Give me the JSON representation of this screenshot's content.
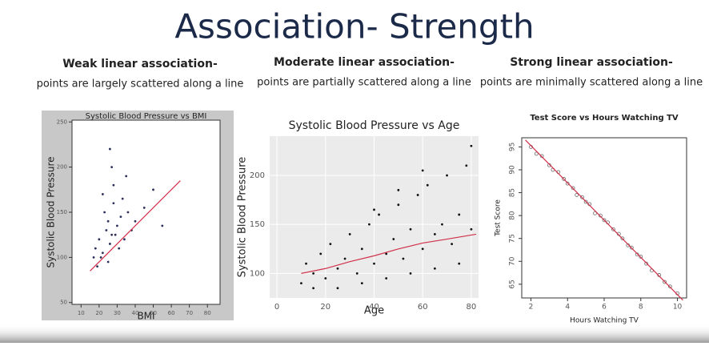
{
  "slide": {
    "title": "Association- Strength",
    "columns": [
      {
        "heading": "Weak linear association-",
        "subheading": "points are largely scattered along a line"
      },
      {
        "heading": "Moderate linear association-",
        "subheading": "points are partially scattered along a line"
      },
      {
        "heading": "Strong linear association-",
        "subheading": "points are minimally scattered along a line"
      }
    ]
  },
  "chart_data": [
    {
      "type": "scatter",
      "title": "Systolic Blood Pressure vs BMI",
      "x_label": "BMI",
      "y_label": "Systolic Blood Pressure",
      "x": [
        18,
        20,
        22,
        24,
        25,
        26,
        27,
        28,
        30,
        32,
        34,
        36,
        38,
        40,
        22,
        25,
        28,
        31,
        19,
        23,
        27,
        33,
        45,
        50,
        55,
        21,
        29,
        35,
        17,
        26
      ],
      "values": [
        110,
        120,
        105,
        130,
        140,
        115,
        125,
        160,
        135,
        145,
        120,
        150,
        130,
        140,
        170,
        95,
        180,
        110,
        90,
        150,
        200,
        165,
        155,
        175,
        135,
        100,
        125,
        190,
        100,
        220
      ],
      "color": "#2b2f5a",
      "fit": {
        "x": [
          15,
          65
        ],
        "values": [
          85,
          185
        ],
        "color": "#d0314a"
      },
      "xlim": [
        5,
        87
      ],
      "ylim": [
        48,
        252
      ],
      "xticks": [
        10,
        20,
        30,
        40,
        50,
        60,
        70,
        80
      ],
      "yticks": [
        50,
        100,
        150,
        200,
        250
      ],
      "background": "#c8c8c8",
      "grid": false
    },
    {
      "type": "scatter",
      "title": "Systolic Blood Pressure vs Age",
      "x_label": "Age",
      "y_label": "Systolic Blood Pressure",
      "x": [
        10,
        12,
        15,
        18,
        20,
        22,
        25,
        28,
        30,
        33,
        35,
        38,
        40,
        42,
        45,
        48,
        50,
        52,
        55,
        58,
        60,
        62,
        65,
        68,
        70,
        72,
        75,
        78,
        80,
        80,
        15,
        25,
        35,
        45,
        55,
        65,
        75,
        60,
        50,
        40
      ],
      "values": [
        90,
        110,
        100,
        120,
        95,
        130,
        105,
        115,
        140,
        100,
        125,
        150,
        110,
        160,
        120,
        135,
        170,
        115,
        145,
        180,
        125,
        190,
        140,
        150,
        200,
        130,
        160,
        210,
        145,
        230,
        85,
        85,
        90,
        95,
        100,
        105,
        110,
        205,
        185,
        165
      ],
      "color": "#111111",
      "fit": {
        "x": [
          10,
          20,
          30,
          40,
          50,
          60,
          70,
          82
        ],
        "values": [
          100,
          105,
          112,
          118,
          125,
          131,
          135,
          140
        ],
        "color": "#d0314a"
      },
      "xlim": [
        -3,
        83
      ],
      "ylim": [
        75,
        240
      ],
      "xticks": [
        0,
        20,
        40,
        60,
        80
      ],
      "yticks": [
        100,
        150,
        200
      ],
      "background": "#ebebeb",
      "grid": true
    },
    {
      "type": "scatter",
      "title": "Test Score vs Hours Watching TV",
      "x_label": "Hours Watching TV",
      "y_label": "Test Score",
      "x": [
        2,
        2.3,
        2.6,
        3,
        3.2,
        3.5,
        3.8,
        4,
        4.3,
        4.5,
        4.8,
        5,
        5.2,
        5.5,
        5.8,
        6,
        6.2,
        6.5,
        6.8,
        7,
        7.3,
        7.5,
        7.8,
        8,
        8.3,
        8.6,
        9,
        9.3,
        9.6,
        10
      ],
      "values": [
        95,
        93.5,
        93,
        91,
        90,
        89.5,
        88,
        87,
        86,
        84.5,
        84,
        83,
        82.5,
        80.5,
        80,
        79,
        78.5,
        77,
        76,
        75,
        73.5,
        73,
        71.5,
        71,
        69.5,
        68,
        67,
        65.5,
        64.5,
        63
      ],
      "color": "#666666",
      "fit": {
        "x": [
          1.7,
          10.3
        ],
        "values": [
          96.5,
          61.5
        ],
        "color": "#d0314a"
      },
      "xlim": [
        1.5,
        10.5
      ],
      "ylim": [
        62,
        97
      ],
      "xticks": [
        2,
        4,
        6,
        8,
        10
      ],
      "yticks": [
        65,
        70,
        75,
        80,
        85,
        90,
        95
      ],
      "background": "#ffffff",
      "grid": false
    }
  ]
}
